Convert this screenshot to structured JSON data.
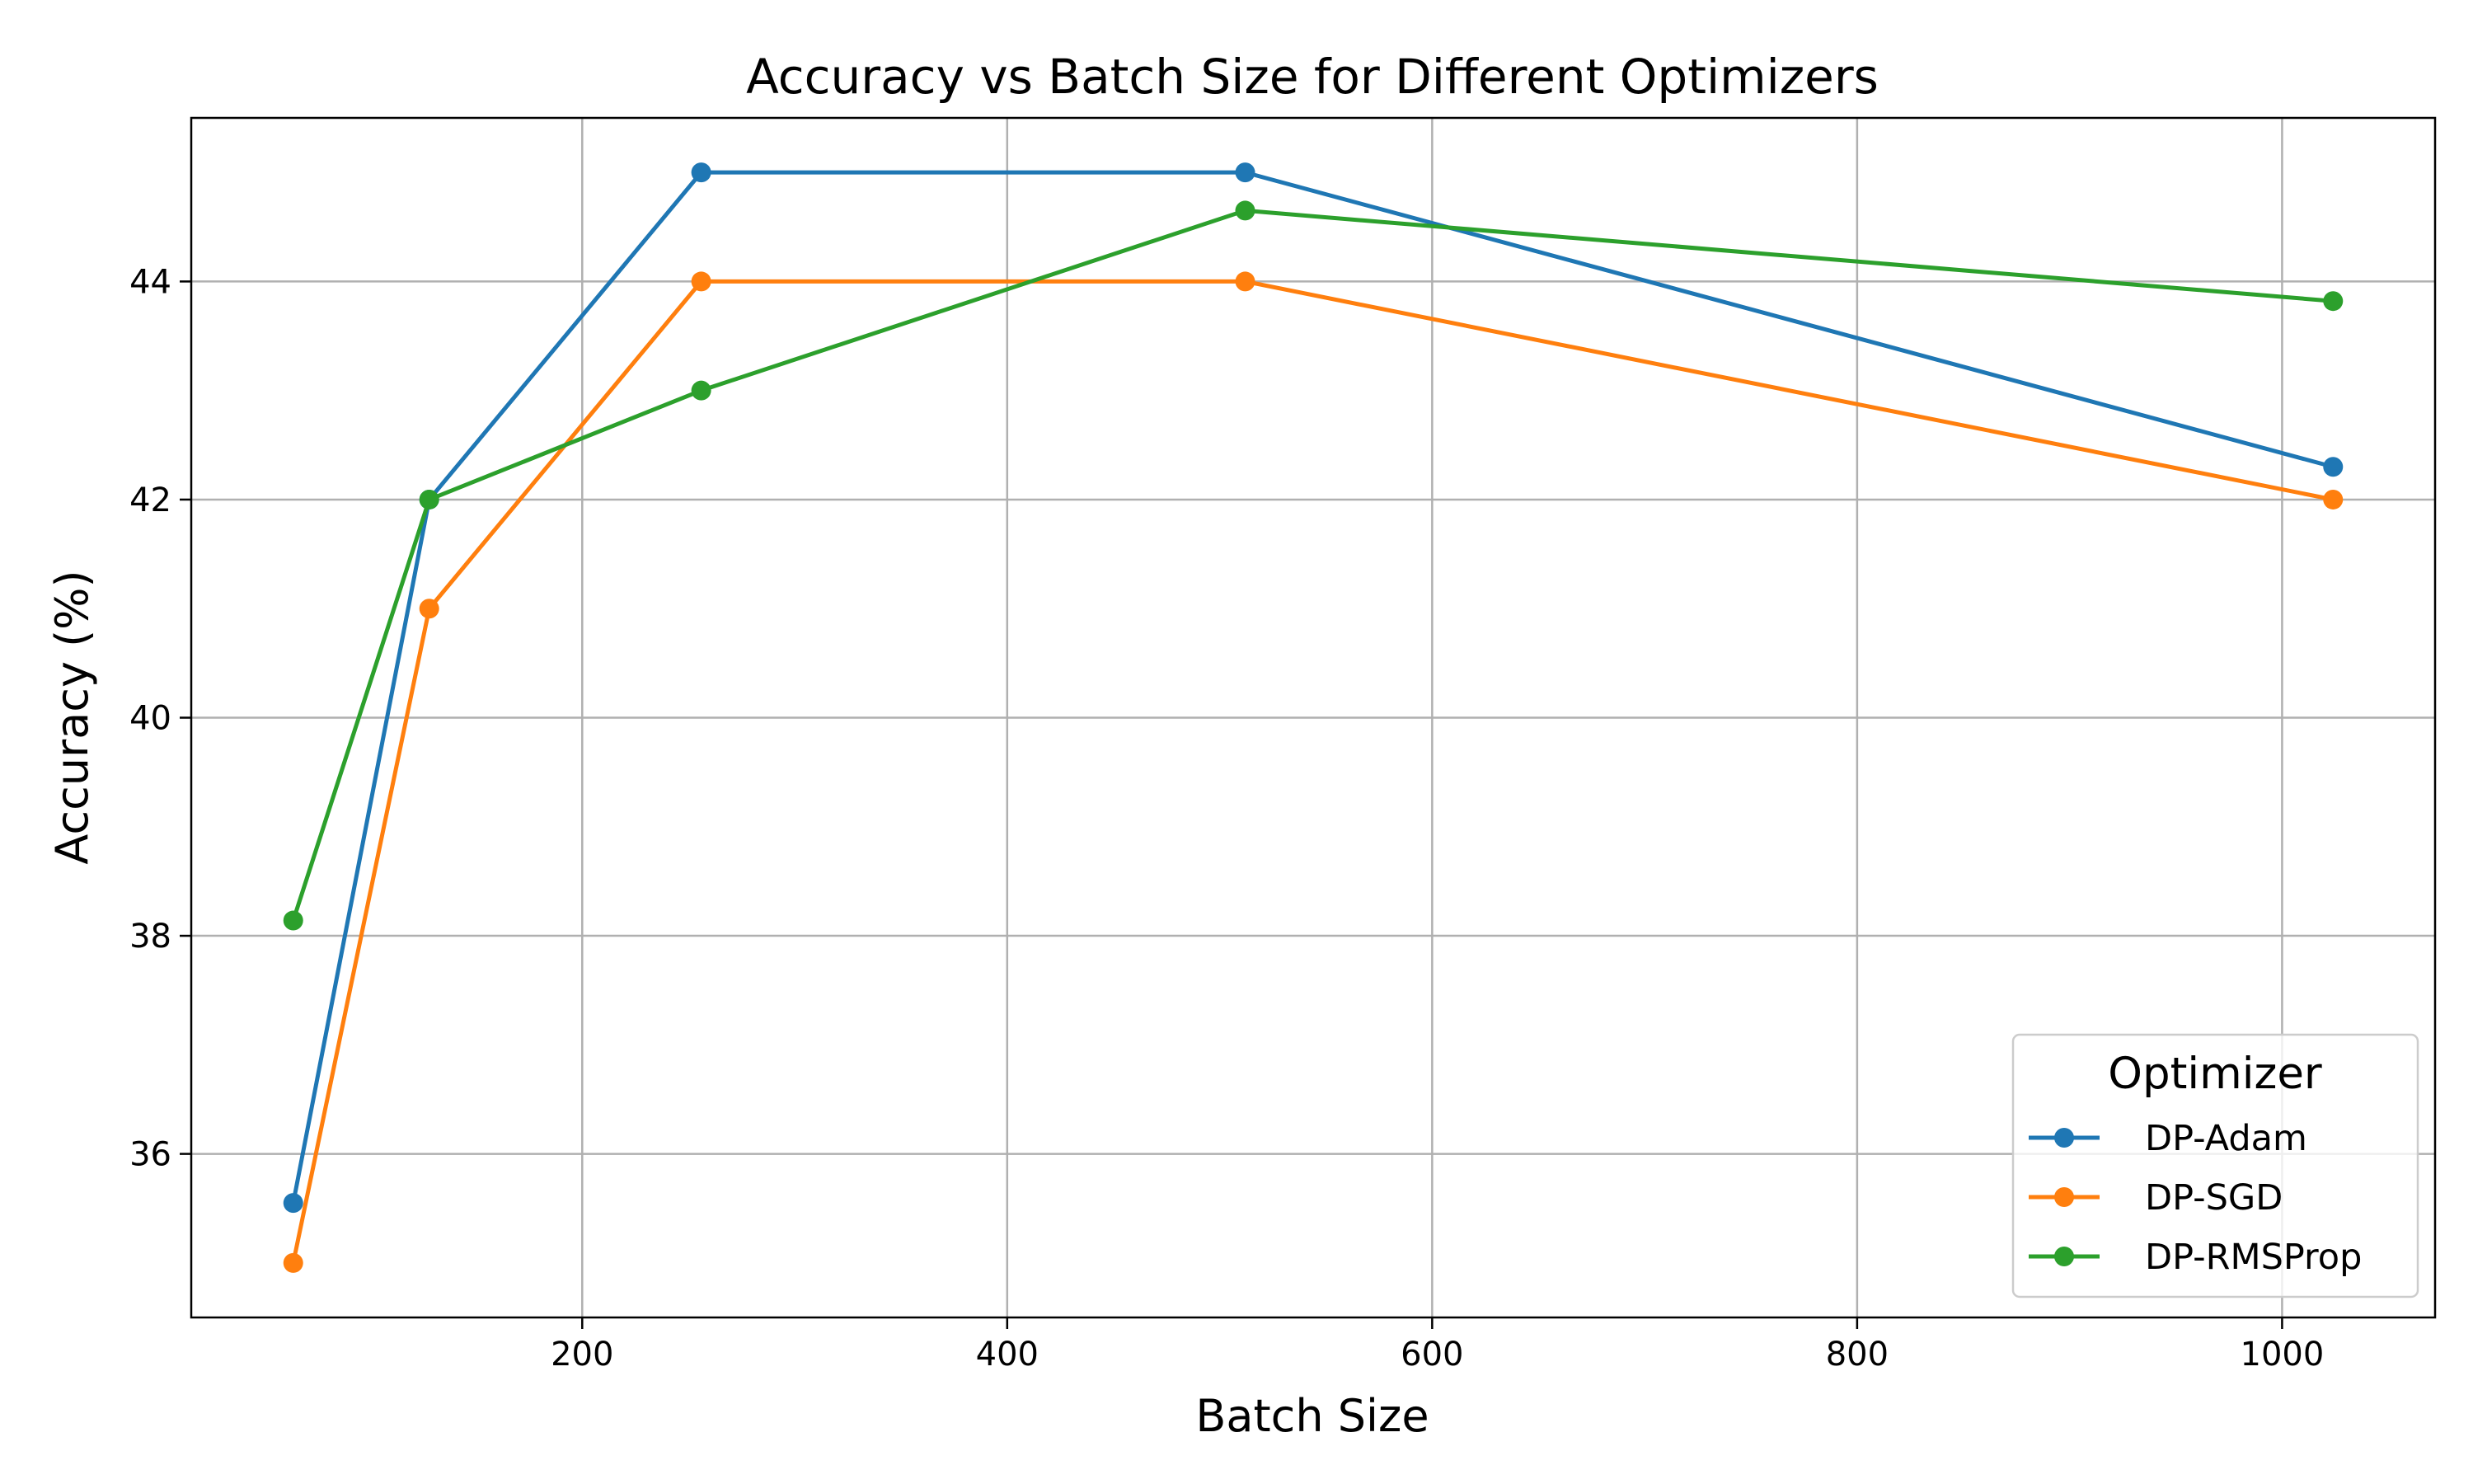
{
  "chart_data": {
    "type": "line",
    "title": "Accuracy vs Batch Size for Different Optimizers",
    "xlabel": "Batch Size",
    "ylabel": "Accuracy (%)",
    "xlim": [
      16,
      1072
    ],
    "ylim": [
      34.5,
      45.5
    ],
    "xticks": [
      200,
      400,
      600,
      800,
      1000
    ],
    "yticks": [
      36,
      38,
      40,
      42,
      44
    ],
    "grid": true,
    "legend": {
      "title": "Optimizer",
      "placement": "lower-right"
    },
    "x": [
      64,
      128,
      256,
      512,
      1024
    ],
    "series": [
      {
        "name": "DP-Adam",
        "color": "#1f77b4",
        "values": [
          35.55,
          42.0,
          45.0,
          45.0,
          42.3
        ]
      },
      {
        "name": "DP-SGD",
        "color": "#ff7f0e",
        "values": [
          35.0,
          41.0,
          44.0,
          44.0,
          42.0
        ]
      },
      {
        "name": "DP-RMSProp",
        "color": "#2ca02c",
        "values": [
          38.14,
          42.0,
          43.0,
          44.65,
          43.82
        ]
      }
    ]
  }
}
